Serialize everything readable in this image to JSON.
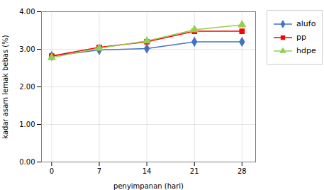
{
  "chart_data": {
    "type": "line",
    "x": [
      0,
      7,
      14,
      21,
      28
    ],
    "series": [
      {
        "name": "alufo",
        "color": "#4472C4",
        "marker": "diamond",
        "values": [
          2.82,
          2.98,
          3.02,
          3.2,
          3.2
        ]
      },
      {
        "name": "pp",
        "color": "#FF0000",
        "marker": "square",
        "values": [
          2.82,
          3.05,
          3.2,
          3.48,
          3.48
        ]
      },
      {
        "name": "hdpe",
        "color": "#92D050",
        "marker": "triangle",
        "values": [
          2.78,
          3.03,
          3.22,
          3.52,
          3.65
        ]
      }
    ],
    "xlabel": "penyimpanan (hari)",
    "ylabel": "kadar asam lemak bebas (%)",
    "xlim": [
      -1.5,
      30
    ],
    "xticks": [
      0,
      7,
      14,
      21,
      28
    ],
    "ylim": [
      0.0,
      4.0
    ],
    "yticks": [
      {
        "value": 0.0,
        "label": "0.00"
      },
      {
        "value": 1.0,
        "label": "1.00"
      },
      {
        "value": 2.0,
        "label": "2.00"
      },
      {
        "value": 3.0,
        "label": "3.00"
      },
      {
        "value": 4.0,
        "label": "4.00"
      }
    ],
    "grid": true,
    "legend": "right"
  }
}
